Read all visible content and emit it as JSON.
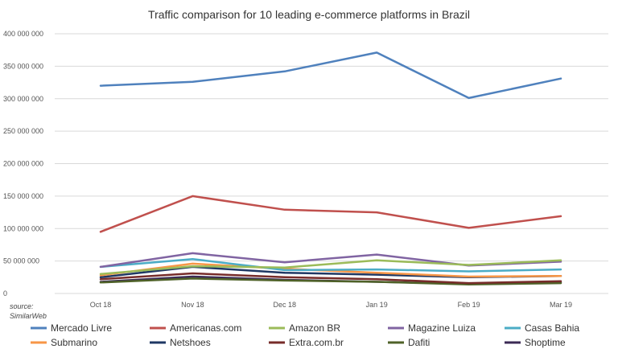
{
  "chart_data": {
    "type": "line",
    "title": "Traffic comparison for 10 leading e-commerce platforms in Brazil",
    "categories": [
      "Oct 18",
      "Nov 18",
      "Dec 18",
      "Jan 19",
      "Feb 19",
      "Mar 19"
    ],
    "ylim": [
      0,
      400000000
    ],
    "yticks": [
      0,
      50000000,
      100000000,
      150000000,
      200000000,
      250000000,
      300000000,
      350000000,
      400000000
    ],
    "ytick_labels": [
      "0",
      "50 000 000",
      "100 000 000",
      "150 000 000",
      "200 000 000",
      "250 000 000",
      "300 000 000",
      "350 000 000",
      "400 000 000"
    ],
    "grid": true,
    "legend_position": "bottom",
    "source_lines": [
      "source:",
      "SimilarWeb"
    ],
    "series": [
      {
        "name": "Mercado Livre",
        "color": "#4f81bd",
        "values": [
          320000000,
          326000000,
          342000000,
          371000000,
          301000000,
          331000000
        ]
      },
      {
        "name": "Americanas.com",
        "color": "#c0504d",
        "values": [
          95000000,
          150000000,
          129000000,
          125000000,
          101000000,
          119000000
        ]
      },
      {
        "name": "Amazon BR",
        "color": "#9bbb59",
        "values": [
          30000000,
          42000000,
          40000000,
          51000000,
          44000000,
          51000000
        ]
      },
      {
        "name": "Magazine Luiza",
        "color": "#8064a2",
        "values": [
          41000000,
          62000000,
          48000000,
          60000000,
          43000000,
          49000000
        ]
      },
      {
        "name": "Casas Bahia",
        "color": "#4bacc6",
        "values": [
          41000000,
          53000000,
          36000000,
          37000000,
          34000000,
          37000000
        ]
      },
      {
        "name": "Submarino",
        "color": "#f79646",
        "values": [
          28000000,
          46000000,
          38000000,
          32000000,
          26000000,
          27000000
        ]
      },
      {
        "name": "Netshoes",
        "color": "#1f3864",
        "values": [
          25000000,
          41000000,
          32000000,
          29000000,
          25000000,
          27000000
        ]
      },
      {
        "name": "Extra.com.br",
        "color": "#772c2a",
        "values": [
          22000000,
          31000000,
          25000000,
          22000000,
          16000000,
          19000000
        ]
      },
      {
        "name": "Dafiti",
        "color": "#4f6228",
        "values": [
          17000000,
          23000000,
          20000000,
          18000000,
          14000000,
          16000000
        ]
      },
      {
        "name": "Shoptime",
        "color": "#3b2a55",
        "values": [
          18000000,
          26000000,
          21000000,
          18000000,
          15000000,
          17000000
        ]
      }
    ]
  }
}
